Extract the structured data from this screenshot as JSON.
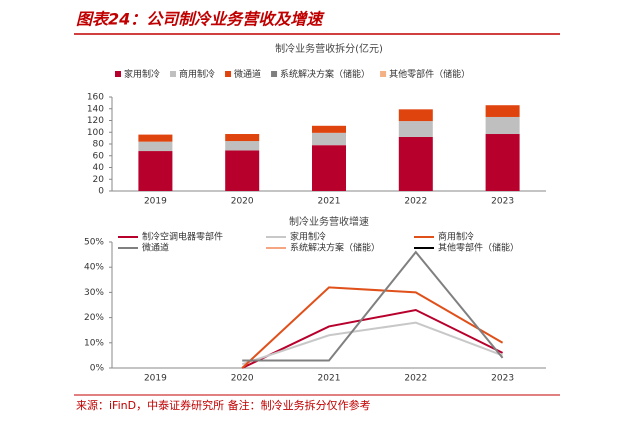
{
  "header": {
    "title": "图表24：公司制冷业务营收及增速"
  },
  "chart_data": [
    {
      "type": "bar",
      "stacked": true,
      "title": "制冷业务营收拆分(亿元)",
      "categories": [
        "2019",
        "2020",
        "2021",
        "2022",
        "2023"
      ],
      "series": [
        {
          "name": "家用制冷",
          "color": "#b8002c",
          "values": [
            68,
            69,
            78,
            92,
            97
          ]
        },
        {
          "name": "商用制冷",
          "color": "#bfbfbf",
          "values": [
            16,
            16,
            21,
            27,
            29
          ]
        },
        {
          "name": "微通道",
          "color": "#e0440e",
          "values": [
            12,
            12,
            12,
            20,
            20
          ]
        },
        {
          "name": "系统解决方案（储能）",
          "color": "#7f7f7f",
          "values": [
            0,
            0,
            0,
            0,
            0
          ]
        },
        {
          "name": "其他零部件（储能）",
          "color": "#f4b183",
          "values": [
            0,
            0,
            0,
            0,
            0
          ]
        }
      ],
      "ylim": [
        0,
        160
      ],
      "yticks": [
        0,
        20,
        40,
        60,
        80,
        100,
        120,
        140,
        160
      ]
    },
    {
      "type": "line",
      "title": "制冷业务营收增速",
      "categories": [
        "2019",
        "2020",
        "2021",
        "2022",
        "2023"
      ],
      "series": [
        {
          "name": "制冷空调电器零部件",
          "color": "#b8002c",
          "values": [
            null,
            0,
            16.5,
            23,
            6
          ]
        },
        {
          "name": "家用制冷",
          "color": "#c8c8c8",
          "values": [
            null,
            1.5,
            13,
            18,
            5
          ]
        },
        {
          "name": "商用制冷",
          "color": "#e0501a",
          "values": [
            null,
            0,
            32,
            30,
            10
          ]
        },
        {
          "name": "微通道",
          "color": "#808080",
          "values": [
            null,
            3,
            3,
            46,
            4
          ]
        },
        {
          "name": "系统解决方案（储能）",
          "color": "#f4a582",
          "values": [
            null,
            null,
            null,
            null,
            null
          ]
        },
        {
          "name": "其他零部件（储能）",
          "color": "#000000",
          "values": [
            null,
            null,
            null,
            null,
            null
          ]
        }
      ],
      "ylim": [
        0,
        50
      ],
      "yticks": [
        {
          "value": 0,
          "label": "0%"
        },
        {
          "value": 10,
          "label": "10%"
        },
        {
          "value": 20,
          "label": "20%"
        },
        {
          "value": 30,
          "label": "30%"
        },
        {
          "value": 40,
          "label": "40%"
        },
        {
          "value": 50,
          "label": "50%"
        }
      ]
    }
  ],
  "footer": {
    "source": "来源：iFinD，中泰证券研究所 备注：制冷业务拆分仅作参考"
  }
}
